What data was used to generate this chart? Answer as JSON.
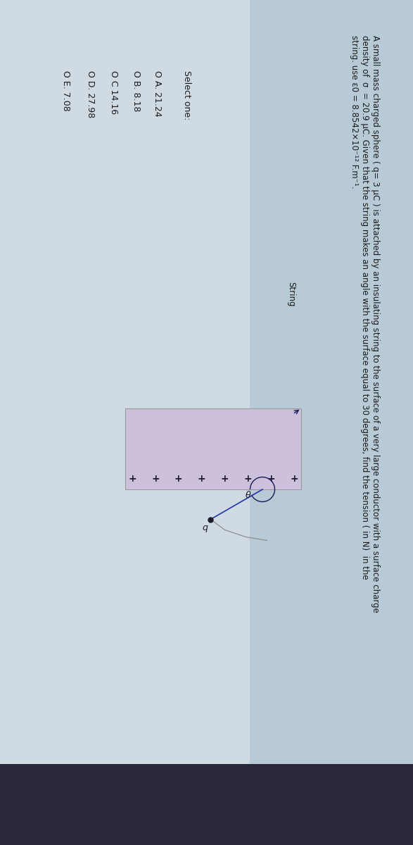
{
  "bg_outer": "#c8cdd2",
  "bg_question": "#c2ced8",
  "bg_middle": "#d4dde4",
  "bg_bottom_dark": "#28283a",
  "text_color": "#1a1a1a",
  "question_line1": "A small mass charged sphere ( q= 3 μC ) is attached by an insulating string to the surface of a very large conductor with a surface charge",
  "question_line2": "density of  σ  = 20.9 μC. Given that the string makes an angle with the surface equal to 30 degrees, find the tension ( in N)  in the",
  "question_line3": "string. use ε0 = 8.8542×10⁻¹² F.m⁻¹.",
  "string_label": "String",
  "select_one": "Select one:",
  "opt_a": "O A. 21.24",
  "opt_b": "O B. 8.18",
  "opt_c": "O C 14.16",
  "opt_d": "O D. 27.98",
  "opt_e": "O E. 7.08",
  "conductor_color": "#ccc0dc",
  "plus_color": "#1a1a2a",
  "string_color": "#2233aa",
  "dot_color": "#1a1a2a"
}
